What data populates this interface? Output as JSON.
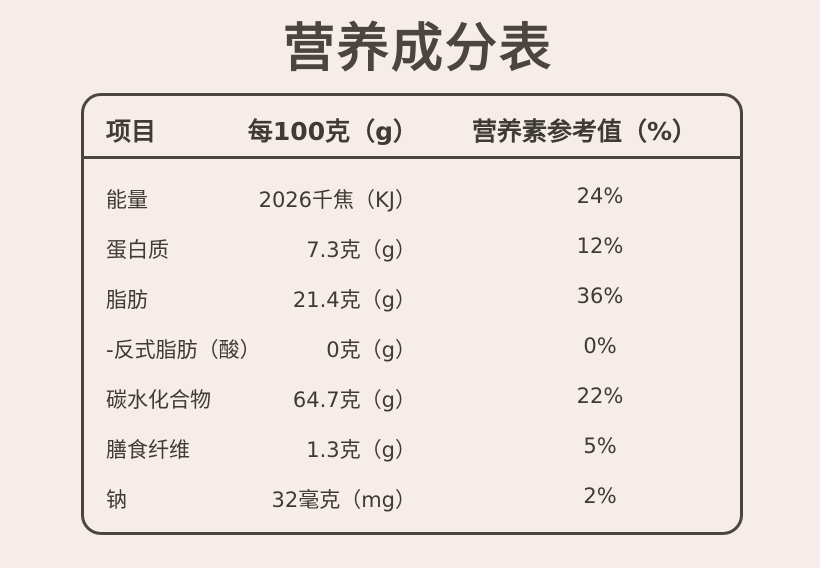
{
  "title": "营养成分表",
  "headers": [
    "项目",
    "每100克（g）",
    "营养素参考值（%）"
  ],
  "rows": [
    {
      "item": "能量",
      "per100": "2026千焦（KJ）",
      "nrv": "24%"
    },
    {
      "item": "蛋白质",
      "per100": "7.3克（g）",
      "nrv": "12%"
    },
    {
      "item": "脂肪",
      "per100": "21.4克（g）",
      "nrv": "36%"
    },
    {
      "item": "-反式脂肪（酸）",
      "per100": "0克（g）",
      "nrv": "0%"
    },
    {
      "item": "碳水化合物",
      "per100": "64.7克（g）",
      "nrv": "22%"
    },
    {
      "item": "膳食纤维",
      "per100": "1.3克（g）",
      "nrv": "5%"
    },
    {
      "item": "钠",
      "per100": "32毫克（mg）",
      "nrv": "2%"
    }
  ]
}
